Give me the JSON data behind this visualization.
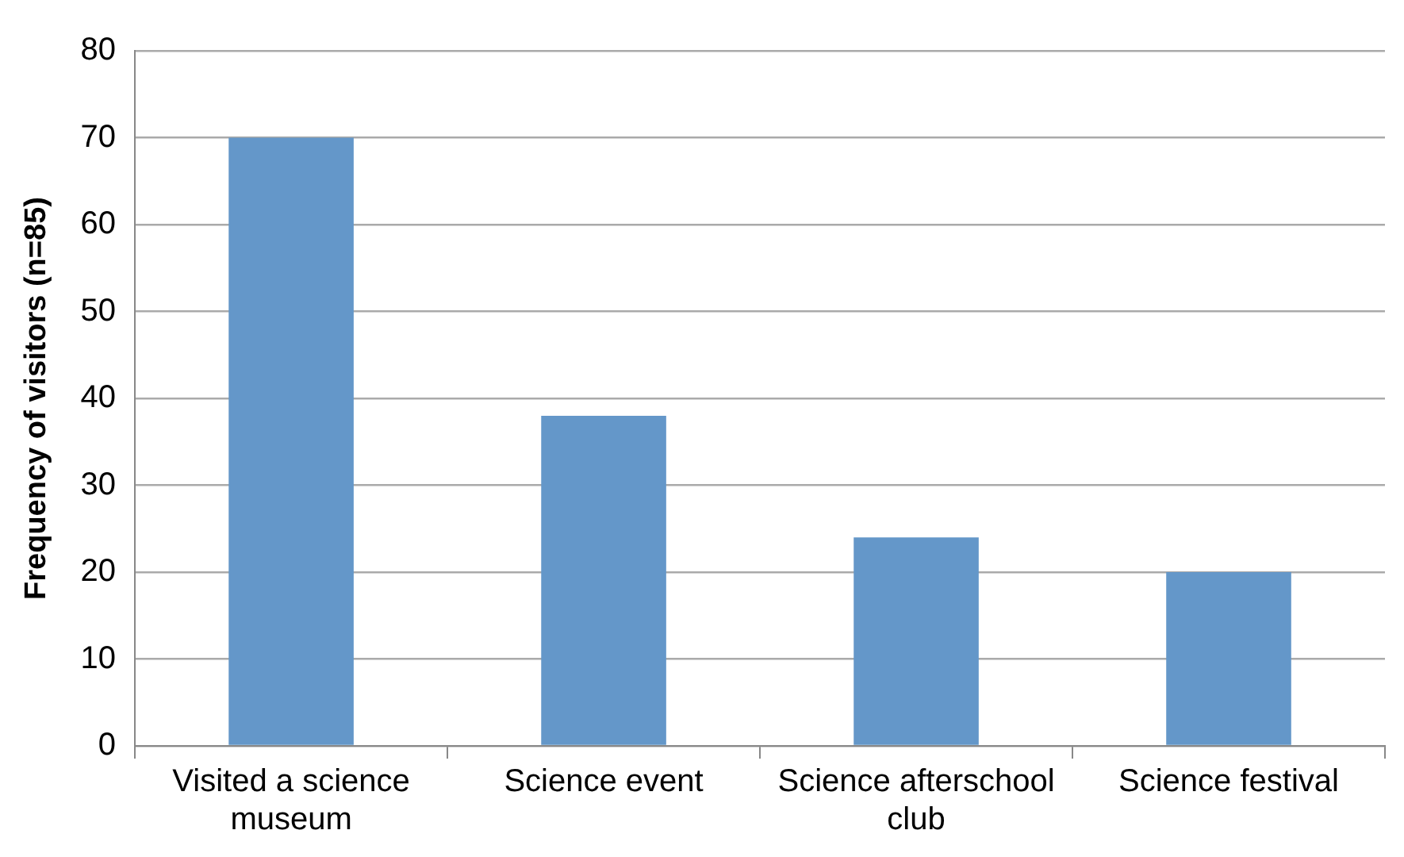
{
  "chart_data": {
    "type": "bar",
    "ylabel": "Frequency of visitors (n=85)",
    "categories": [
      "Visited a science museum",
      "Science event",
      "Science afterschool club",
      "Science festival"
    ],
    "values": [
      70,
      38,
      24,
      20
    ],
    "color": "#6497c9",
    "ylim": [
      0,
      80
    ],
    "yticks": [
      0,
      10,
      20,
      30,
      40,
      50,
      60,
      70,
      80
    ],
    "grid": "y"
  }
}
